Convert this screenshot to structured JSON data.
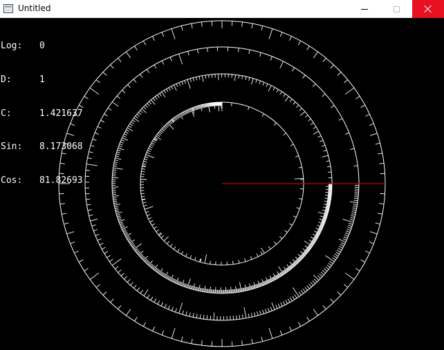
{
  "window": {
    "title": "Untitled"
  },
  "readout": [
    {
      "label": "Log:",
      "value": "0"
    },
    {
      "label": "D:",
      "value": "1"
    },
    {
      "label": "C:",
      "value": "1.421637"
    },
    {
      "label": "Sin:",
      "value": "8.173068"
    },
    {
      "label": "Cos:",
      "value": "81.82693"
    }
  ],
  "dial": {
    "ring_color": "#ffffff",
    "pointer_color": "#cc0000",
    "pointer_angle_deg": 0
  }
}
